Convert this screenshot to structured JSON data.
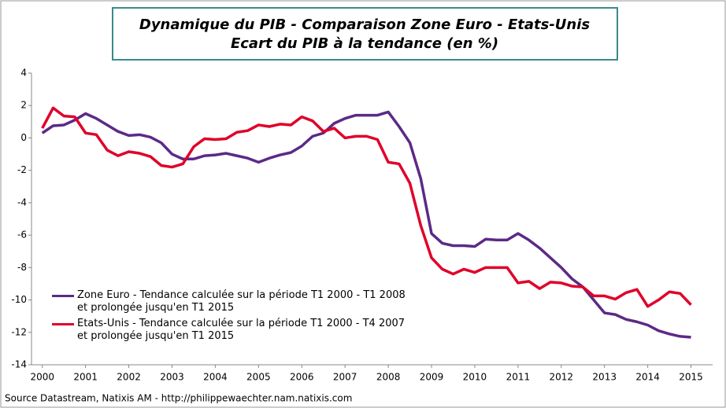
{
  "chart_data": {
    "type": "line",
    "title": "Dynamique du PIB - Comparaison Zone Euro - Etats-Unis",
    "subtitle": "Ecart du PIB à la tendance  (en %)",
    "source": "Source Datastream, Natixis AM - http://philippewaechter.nam.natixis.com",
    "x": [
      2000,
      2000.25,
      2000.5,
      2000.75,
      2001,
      2001.25,
      2001.5,
      2001.75,
      2002,
      2002.25,
      2002.5,
      2002.75,
      2003,
      2003.25,
      2003.5,
      2003.75,
      2004,
      2004.25,
      2004.5,
      2004.75,
      2005,
      2005.25,
      2005.5,
      2005.75,
      2006,
      2006.25,
      2006.5,
      2006.75,
      2007,
      2007.25,
      2007.5,
      2007.75,
      2008,
      2008.25,
      2008.5,
      2008.75,
      2009,
      2009.25,
      2009.5,
      2009.75,
      2010,
      2010.25,
      2010.5,
      2010.75,
      2011,
      2011.25,
      2011.5,
      2011.75,
      2012,
      2012.25,
      2012.5,
      2012.75,
      2013,
      2013.25,
      2013.5,
      2013.75,
      2014,
      2014.25,
      2014.5,
      2014.75,
      2015
    ],
    "series": [
      {
        "name": "Zone Euro - Tendance calculée sur la période T1 2000 - T1 2008 et prolongée jusqu'en T1 2015",
        "color": "#5b2a86",
        "values": [
          0.3,
          0.75,
          0.8,
          1.1,
          1.5,
          1.2,
          0.8,
          0.4,
          0.15,
          0.2,
          0.05,
          -0.3,
          -1.0,
          -1.3,
          -1.3,
          -1.1,
          -1.05,
          -0.95,
          -1.1,
          -1.25,
          -1.5,
          -1.25,
          -1.05,
          -0.9,
          -0.5,
          0.1,
          0.3,
          0.9,
          1.2,
          1.4,
          1.4,
          1.4,
          1.6,
          0.7,
          -0.3,
          -2.5,
          -5.9,
          -6.5,
          -6.65,
          -6.65,
          -6.7,
          -6.25,
          -6.3,
          -6.3,
          -5.9,
          -6.3,
          -6.8,
          -7.4,
          -8.0,
          -8.7,
          -9.2,
          -10.0,
          -10.8,
          -10.9,
          -11.2,
          -11.35,
          -11.55,
          -11.9,
          -12.1,
          -12.25,
          -12.3
        ]
      },
      {
        "name": "Etats-Unis - Tendance calculée sur la période T1 2000 - T4 2007 et prolongée jusqu'en T1 2015",
        "color": "#e0002a",
        "values": [
          0.6,
          1.85,
          1.35,
          1.3,
          0.3,
          0.2,
          -0.75,
          -1.1,
          -0.85,
          -0.95,
          -1.15,
          -1.7,
          -1.8,
          -1.6,
          -0.55,
          -0.05,
          -0.1,
          -0.05,
          0.35,
          0.45,
          0.8,
          0.7,
          0.85,
          0.8,
          1.3,
          1.05,
          0.4,
          0.6,
          0.0,
          0.1,
          0.1,
          -0.1,
          -1.5,
          -1.6,
          -2.8,
          -5.4,
          -7.4,
          -8.1,
          -8.4,
          -8.1,
          -8.3,
          -8.0,
          -8.0,
          -8.0,
          -8.95,
          -8.85,
          -9.3,
          -8.9,
          -8.95,
          -9.15,
          -9.2,
          -9.75,
          -9.75,
          -9.95,
          -9.55,
          -9.35,
          -10.4,
          -10.0,
          -9.5,
          -9.6,
          -10.3
        ]
      }
    ],
    "xlim": [
      1999.75,
      2015.5
    ],
    "xticks": [
      2000,
      2001,
      2002,
      2003,
      2004,
      2005,
      2006,
      2007,
      2008,
      2009,
      2010,
      2011,
      2012,
      2013,
      2014,
      2015
    ],
    "ylim": [
      -14,
      4
    ],
    "yticks": [
      -14,
      -12,
      -10,
      -8,
      -6,
      -4,
      -2,
      0,
      2,
      4
    ],
    "grid": false
  }
}
